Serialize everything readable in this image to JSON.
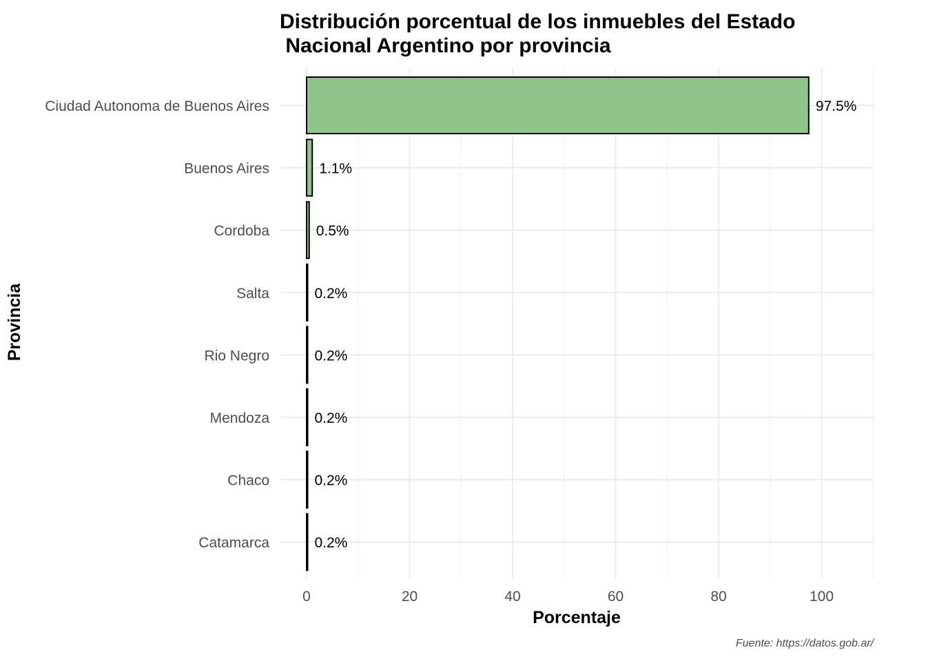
{
  "chart_data": {
    "type": "bar",
    "orientation": "horizontal",
    "title": "Distribución porcentual de los inmuebles del Estado\n Nacional Argentino por provincia",
    "xlabel": "Porcentaje",
    "ylabel": "Provincia",
    "caption": "Fuente: https://datos.gob.ar/",
    "categories": [
      "Ciudad Autonoma de Buenos Aires",
      "Buenos Aires",
      "Cordoba",
      "Salta",
      "Rio Negro",
      "Mendoza",
      "Chaco",
      "Catamarca"
    ],
    "values": [
      97.5,
      1.1,
      0.5,
      0.2,
      0.2,
      0.2,
      0.2,
      0.2
    ],
    "data_labels": [
      "97.5%",
      "1.1%",
      "0.5%",
      "0.2%",
      "0.2%",
      "0.2%",
      "0.2%",
      "0.2%"
    ],
    "xlim": [
      0,
      110
    ],
    "xticks": [
      0,
      20,
      40,
      60,
      80,
      100
    ],
    "xtick_labels": [
      "0",
      "20",
      "40",
      "60",
      "80",
      "100"
    ],
    "grid": true,
    "legend": "none",
    "bar_color": "#8fc58b",
    "bar_border_color": "#000000"
  }
}
